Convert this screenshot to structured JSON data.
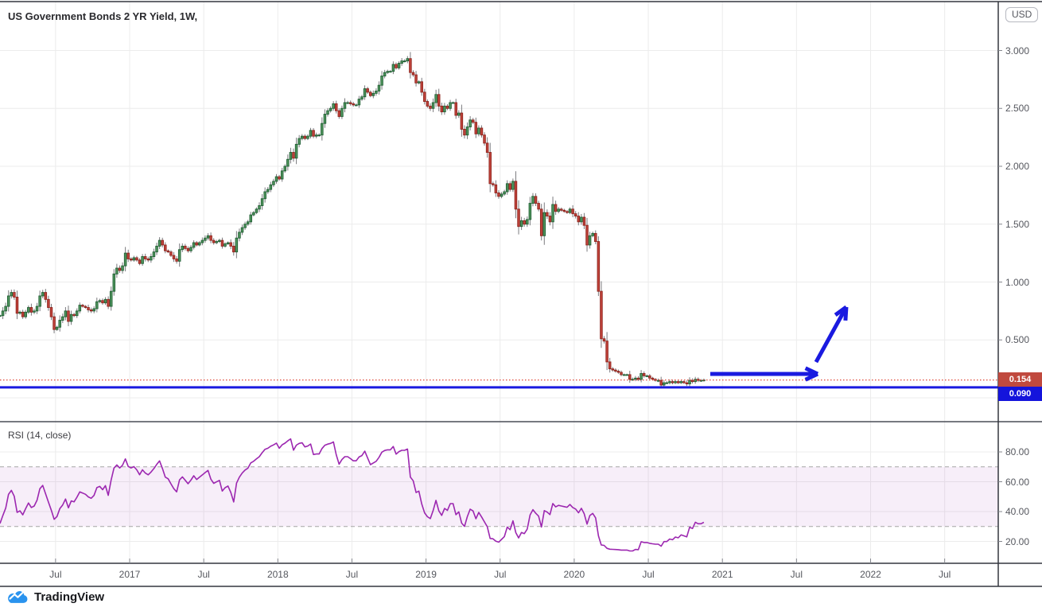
{
  "header": {
    "symbol_title": "US Government Bonds 2 YR Yield, 1W,",
    "currency_button": "USD"
  },
  "price_axis": {
    "labels": [
      {
        "text": "3.000",
        "value": 3.0
      },
      {
        "text": "2.500",
        "value": 2.5
      },
      {
        "text": "2.000",
        "value": 2.0
      },
      {
        "text": "1.500",
        "value": 1.5
      },
      {
        "text": "1.000",
        "value": 1.0
      },
      {
        "text": "0.500",
        "value": 0.5
      }
    ],
    "last_price_label": "0.154",
    "level_label": "0.090",
    "last_price_chip_color": "#c0493e",
    "level_chip_color": "#1414dc"
  },
  "time_axis": {
    "labels": [
      {
        "text": "Jul",
        "t": 2016.5
      },
      {
        "text": "2017",
        "t": 2017.0
      },
      {
        "text": "Jul",
        "t": 2017.5
      },
      {
        "text": "2018",
        "t": 2018.0
      },
      {
        "text": "Jul",
        "t": 2018.5
      },
      {
        "text": "2019",
        "t": 2019.0
      },
      {
        "text": "Jul",
        "t": 2019.5
      },
      {
        "text": "2020",
        "t": 2020.0
      },
      {
        "text": "Jul",
        "t": 2020.5
      },
      {
        "text": "2021",
        "t": 2021.0
      },
      {
        "text": "Jul",
        "t": 2021.5
      },
      {
        "text": "2022",
        "t": 2022.0
      },
      {
        "text": "Jul",
        "t": 2022.5
      }
    ]
  },
  "rsi_panel": {
    "label": "RSI (14, close)",
    "axis_labels": [
      {
        "text": "80.00",
        "value": 80
      },
      {
        "text": "60.00",
        "value": 60
      },
      {
        "text": "40.00",
        "value": 40
      },
      {
        "text": "20.00",
        "value": 20
      }
    ]
  },
  "branding": {
    "logo_text": "TradingView",
    "logo_color": "#2a93ee"
  },
  "chart_data": {
    "type": "candlestick",
    "title": "US Government Bonds 2 YR Yield",
    "interval": "1W",
    "grid": true,
    "price_ylim": [
      -0.2,
      3.44
    ],
    "price_grid_step": 0.5,
    "visible_time_range": [
      2016.12,
      2023.05
    ],
    "start_time": 2016.125,
    "weeks_per_candle": 1,
    "pre_window_closes": [
      0.89,
      0.88,
      0.93,
      0.94,
      0.98,
      1.02,
      0.95,
      0.9,
      0.87,
      0.83,
      0.75,
      0.7,
      0.72,
      0.71
    ],
    "weekly_closes": [
      0.71,
      0.75,
      0.79,
      0.88,
      0.91,
      0.87,
      0.73,
      0.74,
      0.7,
      0.74,
      0.78,
      0.74,
      0.75,
      0.79,
      0.88,
      0.91,
      0.85,
      0.78,
      0.7,
      0.59,
      0.61,
      0.67,
      0.7,
      0.75,
      0.66,
      0.72,
      0.71,
      0.75,
      0.8,
      0.79,
      0.78,
      0.76,
      0.75,
      0.77,
      0.83,
      0.84,
      0.82,
      0.85,
      0.79,
      0.92,
      1.07,
      1.12,
      1.1,
      1.14,
      1.25,
      1.2,
      1.19,
      1.21,
      1.19,
      1.16,
      1.22,
      1.2,
      1.19,
      1.22,
      1.26,
      1.31,
      1.36,
      1.32,
      1.27,
      1.26,
      1.23,
      1.2,
      1.18,
      1.28,
      1.31,
      1.29,
      1.27,
      1.3,
      1.34,
      1.32,
      1.34,
      1.36,
      1.38,
      1.4,
      1.36,
      1.34,
      1.35,
      1.36,
      1.31,
      1.33,
      1.34,
      1.31,
      1.26,
      1.38,
      1.43,
      1.47,
      1.5,
      1.52,
      1.58,
      1.6,
      1.63,
      1.66,
      1.72,
      1.78,
      1.8,
      1.84,
      1.87,
      1.91,
      1.89,
      1.96,
      2.0,
      2.06,
      2.12,
      2.07,
      2.19,
      2.24,
      2.26,
      2.24,
      2.26,
      2.31,
      2.26,
      2.27,
      2.27,
      2.37,
      2.45,
      2.48,
      2.5,
      2.54,
      2.48,
      2.43,
      2.5,
      2.55,
      2.55,
      2.54,
      2.53,
      2.53,
      2.58,
      2.6,
      2.67,
      2.64,
      2.61,
      2.63,
      2.65,
      2.7,
      2.78,
      2.81,
      2.82,
      2.82,
      2.88,
      2.85,
      2.89,
      2.91,
      2.91,
      2.93,
      2.81,
      2.79,
      2.72,
      2.73,
      2.64,
      2.56,
      2.52,
      2.5,
      2.55,
      2.62,
      2.52,
      2.47,
      2.52,
      2.5,
      2.55,
      2.55,
      2.44,
      2.46,
      2.32,
      2.27,
      2.34,
      2.4,
      2.38,
      2.28,
      2.33,
      2.27,
      2.2,
      2.12,
      1.85,
      1.84,
      1.77,
      1.74,
      1.76,
      1.78,
      1.85,
      1.8,
      1.87,
      1.63,
      1.48,
      1.53,
      1.5,
      1.54,
      1.68,
      1.74,
      1.68,
      1.63,
      1.4,
      1.6,
      1.57,
      1.52,
      1.67,
      1.61,
      1.63,
      1.62,
      1.61,
      1.6,
      1.63,
      1.59,
      1.57,
      1.52,
      1.56,
      1.49,
      1.32,
      1.4,
      1.42,
      1.35,
      0.92,
      0.51,
      0.49,
      0.31,
      0.25,
      0.24,
      0.23,
      0.22,
      0.2,
      0.2,
      0.2,
      0.16,
      0.16,
      0.17,
      0.16,
      0.21,
      0.19,
      0.19,
      0.17,
      0.16,
      0.15,
      0.15,
      0.11,
      0.13,
      0.13,
      0.14,
      0.13,
      0.14,
      0.13,
      0.14,
      0.13,
      0.12,
      0.15,
      0.14,
      0.16,
      0.15,
      0.15,
      0.154
    ],
    "last_price": 0.154,
    "price_line": {
      "value": 0.154,
      "style": "dotted",
      "color": "#df4636"
    },
    "drawn_horizontal_line": {
      "value": 0.09,
      "color": "#1a1ae0"
    },
    "arrows": [
      {
        "name": "sideways-arrow",
        "from": {
          "t": 2020.918,
          "v": 0.206
        },
        "to": {
          "t": 2021.643,
          "v": 0.206
        },
        "color": "#1a1ae0"
      },
      {
        "name": "breakout-up-arrow",
        "from": {
          "t": 2021.632,
          "v": 0.309
        },
        "to": {
          "t": 2021.836,
          "v": 0.784
        },
        "color": "#1a1ae0"
      }
    ],
    "colors": {
      "up_fill": "#52975f",
      "up_border": "#1f5f33",
      "down_fill": "#c2443c",
      "down_border": "#8f241d",
      "wick": "#7a7a7e",
      "grid": "#ececec",
      "pane_separator": "#4a4d57",
      "frame": "#33363e",
      "tick": "#85878e"
    },
    "rsi": {
      "period": 14,
      "source": "close",
      "overbought": 70,
      "oversold": 30,
      "ylim": [
        0,
        100
      ],
      "line_color": "#9c27b0",
      "band_fill": "rgba(156,39,176,0.08)",
      "band_border": "#a6a6a6"
    }
  }
}
